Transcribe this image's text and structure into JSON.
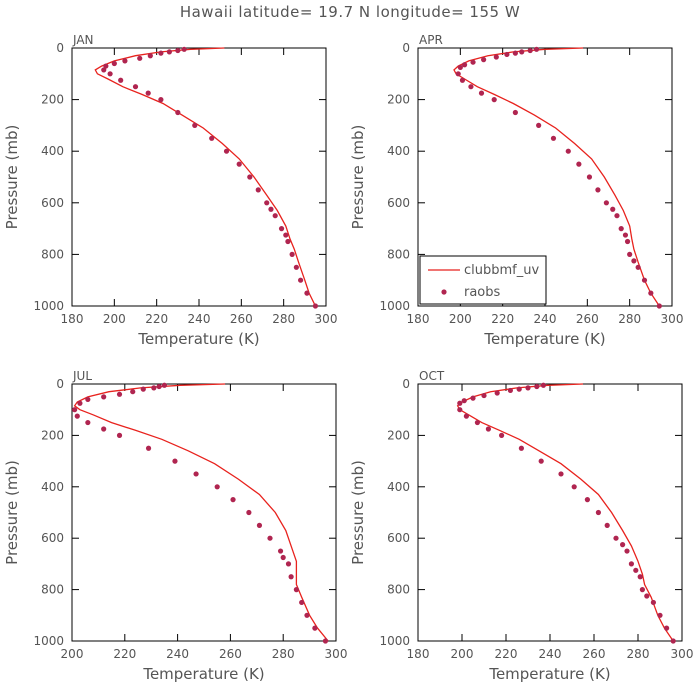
{
  "title": "Hawaii  latitude= 19.7 N longitude= 155 W",
  "colors": {
    "model_line": "#e8221d",
    "obs_marker": "#b02550",
    "axes": "#000000",
    "text": "#555555"
  },
  "legend": {
    "model": "clubbmf_uv",
    "obs": "raobs",
    "placement": "inside lower-left of APR panel"
  },
  "chart_data": [
    {
      "type": "line",
      "panel": "JAN",
      "xlabel": "Temperature (K)",
      "ylabel": "Pressure (mb)",
      "xlim": [
        180,
        300
      ],
      "ylim": [
        1000,
        0
      ],
      "y_inverted": true,
      "xticks": [
        180,
        200,
        220,
        240,
        260,
        280,
        300
      ],
      "yticks": [
        0,
        200,
        400,
        600,
        800,
        1000
      ],
      "grid": false,
      "series": [
        {
          "name": "clubbmf_uv",
          "kind": "line",
          "x": [
            252,
            236,
            222,
            210,
            200,
            194,
            191,
            192,
            197,
            204,
            213,
            223,
            232,
            242,
            251,
            259,
            266,
            272,
            277,
            281,
            283,
            285,
            287,
            290,
            292,
            295
          ],
          "y": [
            0,
            5,
            15,
            30,
            50,
            70,
            85,
            100,
            120,
            150,
            180,
            215,
            260,
            310,
            370,
            430,
            500,
            570,
            630,
            690,
            740,
            780,
            830,
            900,
            950,
            1000
          ]
        },
        {
          "name": "raobs",
          "kind": "points",
          "x": [
            233,
            230,
            226,
            222,
            217,
            212,
            205,
            200,
            196,
            195,
            198,
            203,
            210,
            216,
            222,
            230,
            238,
            246,
            253,
            259,
            264,
            268,
            272,
            274,
            276,
            279,
            281,
            282,
            284,
            286,
            288,
            291,
            295
          ],
          "y": [
            5,
            10,
            15,
            20,
            30,
            40,
            50,
            60,
            70,
            85,
            100,
            125,
            150,
            175,
            200,
            250,
            300,
            350,
            400,
            450,
            500,
            550,
            600,
            625,
            650,
            700,
            725,
            750,
            800,
            850,
            900,
            950,
            1000
          ]
        }
      ]
    },
    {
      "type": "line",
      "panel": "APR",
      "xlabel": "Temperature (K)",
      "ylabel": "Pressure (mb)",
      "xlim": [
        180,
        300
      ],
      "ylim": [
        1000,
        0
      ],
      "y_inverted": true,
      "xticks": [
        180,
        200,
        220,
        240,
        260,
        280,
        300
      ],
      "yticks": [
        0,
        200,
        400,
        600,
        800,
        1000
      ],
      "grid": false,
      "series": [
        {
          "name": "clubbmf_uv",
          "kind": "line",
          "x": [
            258,
            240,
            225,
            213,
            204,
            199,
            197,
            198,
            202,
            208,
            216,
            225,
            235,
            245,
            254,
            262,
            268,
            273,
            277,
            280,
            281,
            282,
            284,
            287,
            290,
            294
          ],
          "y": [
            0,
            5,
            15,
            30,
            50,
            70,
            85,
            100,
            120,
            150,
            180,
            215,
            260,
            310,
            370,
            430,
            500,
            570,
            630,
            690,
            740,
            780,
            830,
            900,
            950,
            1000
          ]
        },
        {
          "name": "raobs",
          "kind": "points",
          "x": [
            236,
            233,
            229,
            226,
            222,
            217,
            211,
            206,
            202,
            200,
            199,
            201,
            205,
            210,
            216,
            226,
            237,
            244,
            251,
            256,
            261,
            265,
            269,
            272,
            274,
            276,
            278,
            279,
            280,
            282,
            284,
            287,
            290,
            294
          ],
          "y": [
            5,
            10,
            15,
            20,
            25,
            35,
            45,
            55,
            65,
            75,
            100,
            125,
            150,
            175,
            200,
            250,
            300,
            350,
            400,
            450,
            500,
            550,
            600,
            625,
            650,
            700,
            725,
            750,
            800,
            825,
            850,
            900,
            950,
            1000
          ]
        }
      ]
    },
    {
      "type": "line",
      "panel": "JUL",
      "xlabel": "Temperature (K)",
      "ylabel": "Pressure (mb)",
      "xlim": [
        200,
        300
      ],
      "ylim": [
        1000,
        0
      ],
      "y_inverted": true,
      "xticks": [
        200,
        220,
        240,
        260,
        280,
        300
      ],
      "yticks": [
        0,
        200,
        400,
        600,
        800,
        1000
      ],
      "grid": false,
      "series": [
        {
          "name": "clubbmf_uv",
          "kind": "line",
          "x": [
            258,
            241,
            226,
            214,
            206,
            202,
            201,
            203,
            208,
            215,
            224,
            234,
            244,
            254,
            263,
            271,
            277,
            281,
            283,
            285,
            285,
            285,
            287,
            290,
            293,
            297
          ],
          "y": [
            0,
            5,
            15,
            30,
            50,
            70,
            85,
            100,
            120,
            150,
            180,
            215,
            260,
            310,
            370,
            430,
            500,
            570,
            630,
            690,
            740,
            780,
            830,
            900,
            950,
            1000
          ]
        },
        {
          "name": "raobs",
          "kind": "points",
          "x": [
            235,
            233,
            231,
            227,
            223,
            218,
            212,
            206,
            203,
            201,
            202,
            206,
            212,
            218,
            229,
            239,
            247,
            255,
            261,
            267,
            271,
            275,
            279,
            280,
            282,
            283,
            285,
            287,
            289,
            292,
            296
          ],
          "y": [
            5,
            10,
            15,
            20,
            30,
            40,
            50,
            60,
            75,
            100,
            125,
            150,
            175,
            200,
            250,
            300,
            350,
            400,
            450,
            500,
            550,
            600,
            650,
            675,
            700,
            750,
            800,
            850,
            900,
            950,
            1000
          ]
        }
      ]
    },
    {
      "type": "line",
      "panel": "OCT",
      "xlabel": "Temperature (K)",
      "ylabel": "Pressure (mb)",
      "xlim": [
        180,
        300
      ],
      "ylim": [
        1000,
        0
      ],
      "y_inverted": true,
      "xticks": [
        180,
        200,
        220,
        240,
        260,
        280,
        300
      ],
      "yticks": [
        0,
        200,
        400,
        600,
        800,
        1000
      ],
      "grid": false,
      "series": [
        {
          "name": "clubbmf_uv",
          "kind": "line",
          "x": [
            255,
            239,
            225,
            213,
            205,
            200,
            198,
            199,
            203,
            209,
            217,
            226,
            235,
            245,
            254,
            262,
            268,
            273,
            277,
            280,
            282,
            283,
            286,
            289,
            292,
            296
          ],
          "y": [
            0,
            5,
            15,
            30,
            50,
            70,
            85,
            100,
            120,
            150,
            180,
            215,
            260,
            310,
            370,
            430,
            500,
            570,
            630,
            690,
            740,
            780,
            830,
            900,
            950,
            1000
          ]
        },
        {
          "name": "raobs",
          "kind": "points",
          "x": [
            237,
            234,
            230,
            226,
            222,
            216,
            210,
            205,
            201,
            199,
            199,
            202,
            207,
            212,
            218,
            227,
            236,
            245,
            251,
            257,
            262,
            266,
            270,
            273,
            275,
            277,
            279,
            281,
            282,
            284,
            287,
            290,
            293,
            296
          ],
          "y": [
            5,
            10,
            15,
            20,
            25,
            35,
            45,
            55,
            65,
            75,
            100,
            125,
            150,
            175,
            200,
            250,
            300,
            350,
            400,
            450,
            500,
            550,
            600,
            625,
            650,
            700,
            725,
            750,
            800,
            825,
            850,
            900,
            950,
            1000
          ]
        }
      ]
    }
  ]
}
